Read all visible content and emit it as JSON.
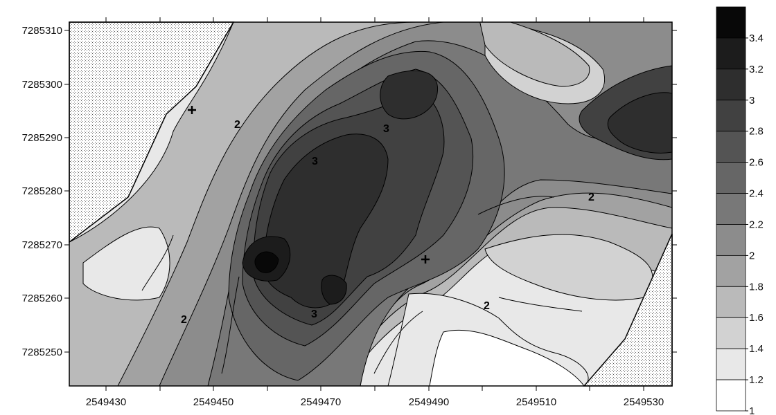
{
  "map": {
    "x_ticks": [
      "2549430",
      "2549450",
      "2549470",
      "2549490",
      "2549510",
      "2549530"
    ],
    "y_ticks": [
      "7285310",
      "7285300",
      "7285290",
      "7285280",
      "7285270",
      "7285260",
      "7285250"
    ],
    "contour_labels": [
      "2",
      "2",
      "2",
      "2",
      "3",
      "3",
      "3"
    ],
    "blanked_fill": "stipple"
  },
  "legend": {
    "levels": [
      "3.4",
      "3.2",
      "3",
      "2.8",
      "2.6",
      "2.4",
      "2.2",
      "2",
      "1.8",
      "1.6",
      "1.4",
      "1.2",
      "1"
    ],
    "colors": [
      "#080808",
      "#1c1c1c",
      "#2e2e2e",
      "#414141",
      "#545454",
      "#666666",
      "#787878",
      "#8c8c8c",
      "#a2a2a2",
      "#bababa",
      "#d2d2d2",
      "#e8e8e8",
      "#ffffff"
    ]
  }
}
